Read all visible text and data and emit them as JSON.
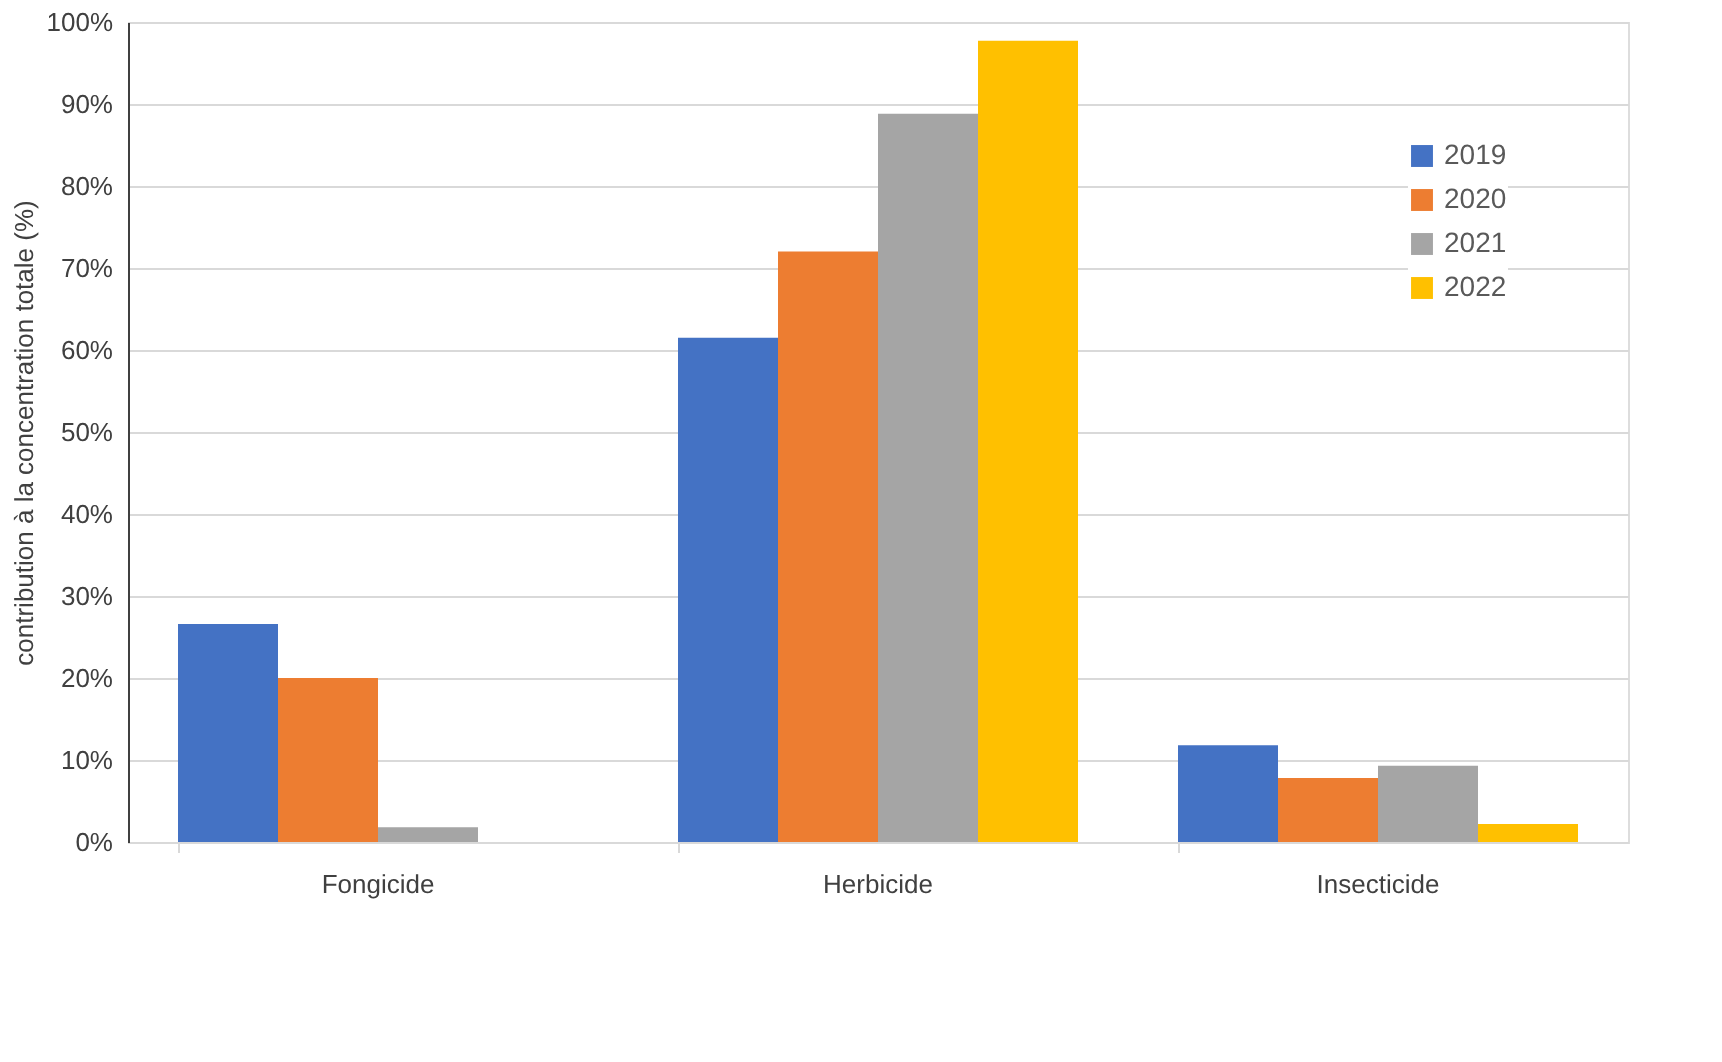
{
  "chart_data": {
    "type": "bar",
    "ylabel": "contribution à la concentration totale (%)",
    "categories": [
      "Fongicide",
      "Herbicide",
      "Insecticide"
    ],
    "series": [
      {
        "name": "2019",
        "color": "#4472c4",
        "values": [
          26.6,
          61.5,
          11.8
        ]
      },
      {
        "name": "2020",
        "color": "#ed7d31",
        "values": [
          20.0,
          72.0,
          7.8
        ]
      },
      {
        "name": "2021",
        "color": "#a5a5a5",
        "values": [
          1.8,
          88.8,
          9.3
        ]
      },
      {
        "name": "2022",
        "color": "#ffc000",
        "values": [
          0,
          97.7,
          2.2
        ]
      }
    ],
    "ylim": [
      0,
      100
    ],
    "yticks": [
      {
        "value": 0,
        "label": "0%"
      },
      {
        "value": 10,
        "label": "10%"
      },
      {
        "value": 20,
        "label": "20%"
      },
      {
        "value": 30,
        "label": "30%"
      },
      {
        "value": 40,
        "label": "40%"
      },
      {
        "value": 50,
        "label": "50%"
      },
      {
        "value": 60,
        "label": "60%"
      },
      {
        "value": 70,
        "label": "70%"
      },
      {
        "value": 80,
        "label": "80%"
      },
      {
        "value": 90,
        "label": "90%"
      },
      {
        "value": 100,
        "label": "100%"
      }
    ],
    "grid": "y",
    "legend": "top right"
  }
}
